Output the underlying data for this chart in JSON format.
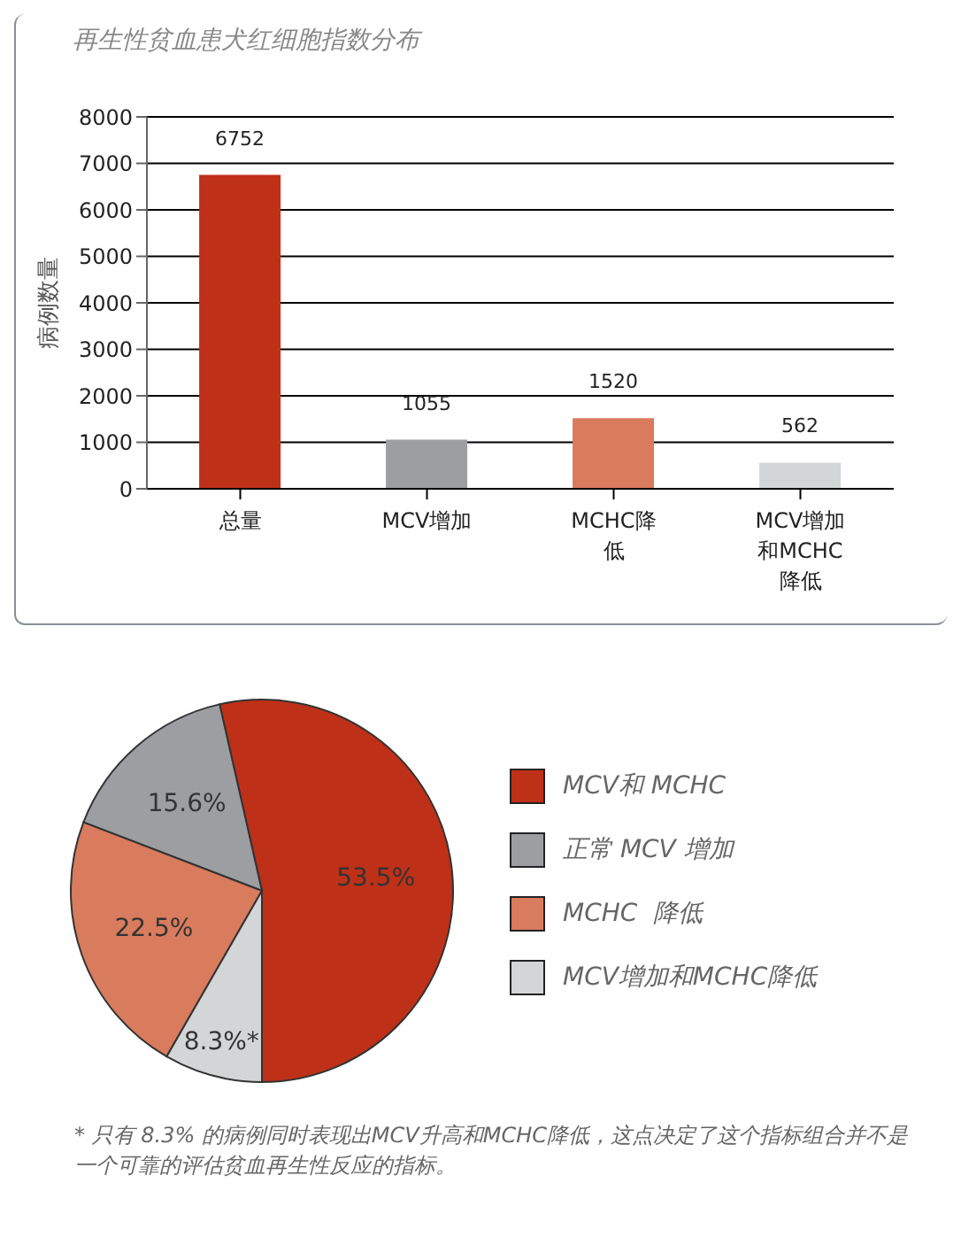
{
  "chart_data": [
    {
      "type": "bar",
      "title": "再生性贫血患犬红细胞指数分布",
      "ylabel": "病例数量",
      "categories": [
        "总量",
        "MCV增加",
        "MCHC降低",
        "MCV增加和MCHC降低"
      ],
      "values": [
        6752,
        1055,
        1520,
        562
      ],
      "colors": [
        "#bf3019",
        "#9d9ea2",
        "#d97b5d",
        "#d4d5d7"
      ],
      "ylim": [
        0,
        8000
      ],
      "yticks": [
        0,
        1000,
        2000,
        3000,
        4000,
        5000,
        6000,
        7000,
        8000
      ],
      "grid": "y",
      "data_labels": true
    },
    {
      "type": "pie",
      "categories": [
        "MCV和 MCHC",
        "正常 MCV 增加",
        "MCHC  降低",
        "MCV增加和MCHC降低"
      ],
      "values": [
        53.5,
        15.6,
        22.5,
        8.3
      ],
      "colors": [
        "#bf3019",
        "#9d9ea2",
        "#d97b5d",
        "#d4d5d7"
      ],
      "value_labels": [
        "53.5%",
        "15.6%",
        "22.5%",
        "8.3%*"
      ],
      "legend": "right",
      "annotations": [
        "* 只有 8.3% 的病例同时表现出MCV升高和MCHC降低，这点决定了这个指标组合并不是一个可靠的评估贫血再生性反应的指标。"
      ]
    }
  ]
}
